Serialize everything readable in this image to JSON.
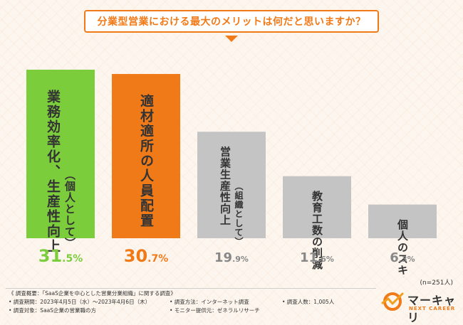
{
  "header": {
    "title": "分業型営業における最大のメリットは何だと思いますか？"
  },
  "chart_data": {
    "type": "bar",
    "title": "分業型営業における最大のメリットは何だと思いますか？",
    "categories": [
      {
        "main": "業務効率化、生産性向上",
        "sub": "（個人として）"
      },
      {
        "main": "適材適所の人員配置",
        "sub": ""
      },
      {
        "main": "営業生産性向上",
        "sub": "（組織として）"
      },
      {
        "main": "教育工数の削減",
        "sub": ""
      },
      {
        "main": "個人のスキルアップ",
        "sub": ""
      }
    ],
    "values": [
      31.5,
      30.7,
      19.9,
      11.6,
      6.3
    ],
    "value_labels": [
      {
        "int": "31",
        "dec": ".5%"
      },
      {
        "int": "30",
        "dec": ".7%"
      },
      {
        "int": "19",
        "dec": ".9%"
      },
      {
        "int": "11",
        "dec": ".6%"
      },
      {
        "int": "6",
        "dec": ".3%"
      }
    ],
    "colors": [
      "#7ccd3c",
      "#f07a18",
      "#c4c4c4",
      "#c4c4c4",
      "#c4c4c4"
    ],
    "value_colors": [
      "#7ccd3c",
      "#f07a18",
      "#888888",
      "#888888",
      "#888888"
    ],
    "ylim": [
      0,
      31.5
    ],
    "xlabel": "",
    "ylabel": ""
  },
  "sample_note": "(n=251人)",
  "footnotes": {
    "overview": "《 調査概要：「SaaS企業を中心とした営業分業組織」に関する調査》",
    "period": "• 調査期間：2023年4月5日（水）～2023年4月6日（木）",
    "target": "• 調査対象：SaaS企業の営業職の方",
    "method": "• 調査方法：インターネット調査",
    "provider": "• モニター提供元：ゼネラルリサーチ",
    "count": "• 調査人数：1,005人"
  },
  "logo": {
    "name": "マーキャリ",
    "sub": "NEXT CAREER",
    "accent": "#f07a18"
  }
}
